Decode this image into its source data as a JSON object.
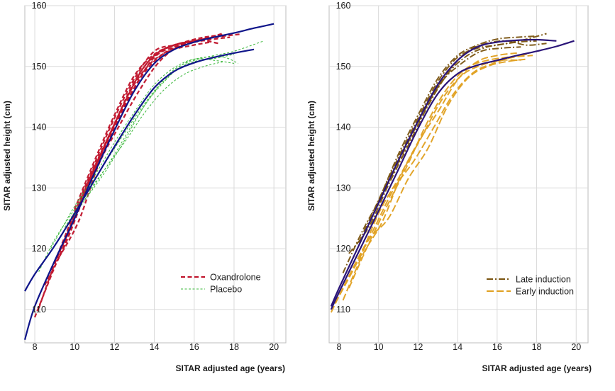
{
  "chart_data": [
    {
      "type": "line",
      "panel": "left",
      "xlabel": "SITAR adjusted age (years)",
      "ylabel": "SITAR adjusted height (cm)",
      "xlim": [
        7.5,
        20.6
      ],
      "ylim": [
        104.5,
        160
      ],
      "xticks": [
        8,
        10,
        12,
        14,
        16,
        18,
        20
      ],
      "yticks": [
        110,
        120,
        130,
        140,
        150,
        160
      ],
      "grid": true,
      "legend_position": "bottom-right",
      "legend": [
        {
          "label": "Oxandrolone",
          "color": "#c0142b",
          "style": "dashed"
        },
        {
          "label": "Placebo",
          "color": "#3cb83c",
          "style": "dashed-thin"
        }
      ],
      "mean_curves": [
        {
          "name": "Oxandrolone mean",
          "color": "#0f158a",
          "x": [
            7.5,
            8,
            9,
            10,
            11,
            12,
            13,
            14,
            15,
            16,
            17,
            18,
            19,
            20
          ],
          "y": [
            105,
            110.5,
            118,
            125,
            132.5,
            139.5,
            146,
            150.5,
            152.8,
            154,
            154.8,
            155.5,
            156.3,
            157
          ]
        },
        {
          "name": "Placebo mean",
          "color": "#0f158a",
          "x": [
            7.5,
            8,
            9,
            10,
            11,
            12,
            13,
            14,
            15,
            16,
            17,
            18,
            19
          ],
          "y": [
            113,
            115.8,
            120.5,
            125.8,
            131.3,
            136.8,
            142,
            146.5,
            149.2,
            150.6,
            151.5,
            152.2,
            152.8
          ]
        }
      ],
      "series": [
        {
          "name": "Oxandrolone",
          "color": "#c0142b",
          "curves": [
            {
              "x": [
                8,
                9,
                10,
                11,
                12,
                13,
                14,
                15,
                16,
                17,
                17.8
              ],
              "y": [
                108.7,
                117,
                124.8,
                133,
                140,
                146.5,
                151.5,
                153.2,
                154,
                154.5,
                154.8
              ]
            },
            {
              "x": [
                8.2,
                9,
                10,
                11,
                12,
                13,
                14,
                15,
                16,
                17,
                18.3
              ],
              "y": [
                110.2,
                117.5,
                125.5,
                133.5,
                140.5,
                147.5,
                151.8,
                153.5,
                154.2,
                154.8,
                155.3
              ]
            },
            {
              "x": [
                8.5,
                9.5,
                10.5,
                11.5,
                12.5,
                13.5,
                14.5,
                15.5,
                16.5,
                17.5
              ],
              "y": [
                114,
                120.5,
                128.8,
                136.5,
                143.5,
                149,
                152.2,
                153.6,
                154.5,
                155
              ]
            },
            {
              "x": [
                9,
                10,
                11,
                12,
                13,
                14,
                15,
                16,
                17
              ],
              "y": [
                117.8,
                126,
                134,
                141.5,
                148,
                152.5,
                153.5,
                154.2,
                154.8
              ]
            },
            {
              "x": [
                9.5,
                10.5,
                11.5,
                12.5,
                13.5,
                14.5,
                15.5,
                16.5,
                17.5
              ],
              "y": [
                121,
                129.5,
                137,
                144,
                150,
                152.8,
                154,
                154.8,
                155.2
              ]
            },
            {
              "x": [
                10,
                11,
                12,
                13,
                14,
                15,
                16,
                17,
                17.5
              ],
              "y": [
                126.5,
                134.5,
                142,
                148.5,
                152,
                153.5,
                154.2,
                155,
                155.5
              ]
            },
            {
              "x": [
                8.8,
                9.8,
                10.8,
                11.8,
                12.8,
                13.8,
                14.8,
                15.8,
                16.8
              ],
              "y": [
                116.5,
                123.5,
                131.5,
                139,
                146,
                150.5,
                152.6,
                153.4,
                154
              ]
            },
            {
              "x": [
                9.2,
                10.2,
                11.2,
                12.2,
                13.2,
                14.2,
                15.2,
                16.2,
                17.2
              ],
              "y": [
                118.5,
                124.5,
                133.8,
                140,
                145.8,
                150.6,
                153.3,
                154.3,
                153.8
              ]
            }
          ]
        },
        {
          "name": "Placebo",
          "color": "#3cb83c",
          "curves": [
            {
              "x": [
                8.2,
                9,
                10,
                11,
                12,
                13,
                14,
                15,
                16,
                17,
                18,
                19.5
              ],
              "y": [
                116.2,
                121.5,
                126.5,
                131.5,
                136.5,
                141.5,
                146,
                149.5,
                151,
                151.8,
                152.5,
                154.2
              ]
            },
            {
              "x": [
                8.8,
                10,
                11,
                12,
                13,
                14,
                15,
                16,
                17,
                18
              ],
              "y": [
                120,
                127,
                132,
                137.5,
                142.5,
                147,
                149.8,
                151.2,
                151,
                150.5
              ]
            },
            {
              "x": [
                9.5,
                10.5,
                11.5,
                12.5,
                13.5,
                14.5,
                15.5,
                16.5,
                17.5
              ],
              "y": [
                123.5,
                128.5,
                133,
                137.5,
                142.3,
                146.2,
                148.7,
                150,
                150.8
              ]
            },
            {
              "x": [
                10,
                11,
                12,
                13,
                14,
                15,
                16,
                17,
                18
              ],
              "y": [
                125.5,
                130.5,
                135.5,
                141,
                145.8,
                149.2,
                150.8,
                151.3,
                152
              ]
            },
            {
              "x": [
                10.5,
                11.5,
                12.5,
                13.5,
                14.5,
                15.5,
                16.5,
                17.5,
                18.2
              ],
              "y": [
                128,
                132.5,
                137.8,
                143.5,
                147.5,
                150.5,
                151.5,
                151.5,
                150.5
              ]
            }
          ]
        }
      ]
    },
    {
      "type": "line",
      "panel": "right",
      "xlabel": "SITAR adjusted age (years)",
      "ylabel": "SITAR adjusted height (cm)",
      "xlim": [
        7.5,
        20.6
      ],
      "ylim": [
        104.5,
        160
      ],
      "xticks": [
        8,
        10,
        12,
        14,
        16,
        18,
        20
      ],
      "yticks": [
        110,
        120,
        130,
        140,
        150,
        160
      ],
      "grid": true,
      "legend_position": "bottom-right",
      "legend": [
        {
          "label": "Late induction",
          "color": "#7a5410",
          "style": "dash-dot"
        },
        {
          "label": "Early induction",
          "color": "#e0a020",
          "style": "long-dash"
        }
      ],
      "mean_curves": [
        {
          "name": "Late induction mean",
          "color": "#2a1478",
          "x": [
            7.6,
            8,
            9,
            10,
            11,
            12,
            13,
            14,
            15,
            16,
            17,
            18,
            19
          ],
          "y": [
            110.5,
            113.5,
            120.5,
            127.5,
            134.5,
            141,
            147,
            151,
            153.2,
            154,
            154.3,
            154.4,
            154.2
          ]
        },
        {
          "name": "Early induction mean",
          "color": "#2a1478",
          "x": [
            7.6,
            8,
            9,
            10,
            11,
            12,
            13,
            14,
            15,
            16,
            17,
            18,
            19,
            19.9
          ],
          "y": [
            110,
            112.8,
            119.5,
            126.2,
            133,
            139.8,
            145.5,
            148.8,
            150.2,
            151,
            151.8,
            152.5,
            153.3,
            154.2
          ]
        }
      ],
      "series": [
        {
          "name": "Late induction",
          "color": "#7a5410",
          "curves": [
            {
              "x": [
                8.5,
                9.5,
                10.5,
                11.5,
                12.5,
                13.5,
                14.5,
                15.5,
                16.5,
                17.5,
                18.5
              ],
              "y": [
                119.2,
                123.5,
                130.5,
                137,
                143.5,
                148.8,
                151.8,
                153.2,
                153.8,
                154.5,
                155.4
              ]
            },
            {
              "x": [
                9,
                10,
                11,
                12,
                13,
                14,
                15,
                16,
                17,
                18
              ],
              "y": [
                121,
                128,
                135,
                141.5,
                147.5,
                151.5,
                153,
                153.5,
                154,
                154.2
              ]
            },
            {
              "x": [
                9.5,
                10.5,
                11.5,
                12.5,
                13.5,
                14.5,
                15.5,
                16.5,
                17.5,
                18.5
              ],
              "y": [
                124,
                131,
                137.8,
                144,
                149,
                152.5,
                153.8,
                154.2,
                153.5,
                153.8
              ]
            },
            {
              "x": [
                10,
                11,
                12,
                13,
                14,
                15,
                16,
                17,
                18
              ],
              "y": [
                127.8,
                135.5,
                142,
                148,
                151.8,
                153.5,
                154.5,
                154.8,
                155
              ]
            },
            {
              "x": [
                8.2,
                9.2,
                10.2,
                11.2,
                12.2,
                13.2,
                14.2,
                15.2,
                16.2,
                17.2
              ],
              "y": [
                116,
                123,
                129,
                135.5,
                142,
                147.5,
                150.5,
                152.5,
                153,
                153.2
              ]
            }
          ]
        },
        {
          "name": "Early induction",
          "color": "#e0a020",
          "curves": [
            {
              "x": [
                7.6,
                8.5,
                9.5,
                10.5,
                11.5,
                12.5,
                13.5,
                14.5,
                15.5,
                16.5,
                17.5
              ],
              "y": [
                109.5,
                115.5,
                121.5,
                125,
                131.5,
                136.5,
                143.5,
                148,
                150,
                150.8,
                151.2
              ]
            },
            {
              "x": [
                7.8,
                8.8,
                9.8,
                10.8,
                11.8,
                12.8,
                13.8,
                14.8,
                15.8,
                16.8,
                17.8
              ],
              "y": [
                111,
                117,
                123.5,
                130,
                134.5,
                140,
                145.5,
                149,
                150.5,
                151.5,
                151.8
              ]
            },
            {
              "x": [
                8.2,
                9.2,
                10.2,
                11.2,
                12.2,
                13.2,
                14.2,
                15.2,
                16.2,
                17.2
              ],
              "y": [
                111.5,
                119,
                124.5,
                132.5,
                138.5,
                144.5,
                148.5,
                150.2,
                151,
                151
              ]
            },
            {
              "x": [
                8.5,
                9.5,
                10.5,
                11.5,
                12.5,
                13.5,
                14.5,
                15.5,
                16.5,
                17.5
              ],
              "y": [
                113.5,
                120.8,
                127.5,
                134,
                141,
                146.5,
                149.8,
                151,
                151.5,
                152
              ]
            },
            {
              "x": [
                9,
                10,
                11,
                12,
                13,
                14,
                15,
                16,
                17
              ],
              "y": [
                118,
                125.8,
                131.5,
                137.5,
                142.5,
                147.8,
                150.8,
                151.8,
                152.2
              ]
            }
          ]
        }
      ]
    }
  ]
}
